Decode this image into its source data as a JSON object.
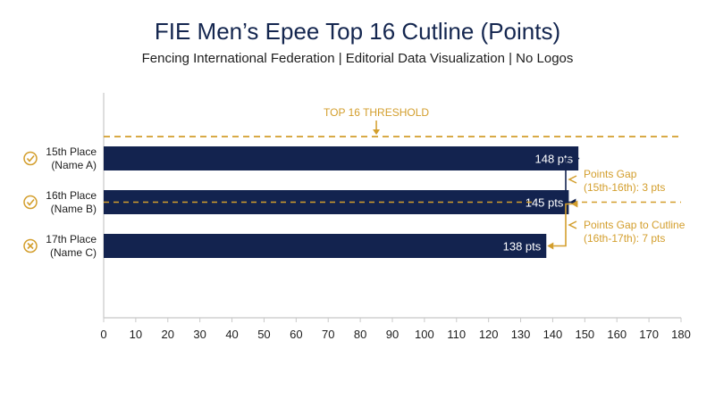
{
  "chart_data": {
    "type": "bar",
    "orientation": "horizontal",
    "title": "FIE Men’s Epee Top 16 Cutline (Points)",
    "subtitle": "Fencing International Federation | Editorial Data Visualization | No Logos",
    "categories": [
      {
        "line1": "15th Place",
        "line2": "(Name A)",
        "status": "qualified"
      },
      {
        "line1": "16th Place",
        "line2": "(Name B)",
        "status": "qualified"
      },
      {
        "line1": "17th Place",
        "line2": "(Name C)",
        "status": "not-qualified"
      }
    ],
    "values": [
      148,
      145,
      138
    ],
    "value_labels": [
      "148 pts",
      "145 pts",
      "138 pts"
    ],
    "xlim": [
      0,
      180
    ],
    "xticks": [
      0,
      10,
      20,
      30,
      40,
      50,
      60,
      70,
      80,
      90,
      100,
      110,
      120,
      130,
      140,
      150,
      160,
      170,
      180
    ],
    "threshold": {
      "label": "TOP 16 THRESHOLD",
      "label_x": 85
    },
    "annotations": [
      {
        "from": 148,
        "to": 145,
        "line1": "Points Gap",
        "line2": "(15th-16th): 3 pts"
      },
      {
        "from": 145,
        "to": 138,
        "line1": "Points Gap to Cutline",
        "line2": "(16th-17th): 7 pts"
      }
    ],
    "colors": {
      "bar": "#13234f",
      "accent": "#d39e2c",
      "text": "#1d1d1d",
      "axis": "#c8c8c8"
    }
  }
}
